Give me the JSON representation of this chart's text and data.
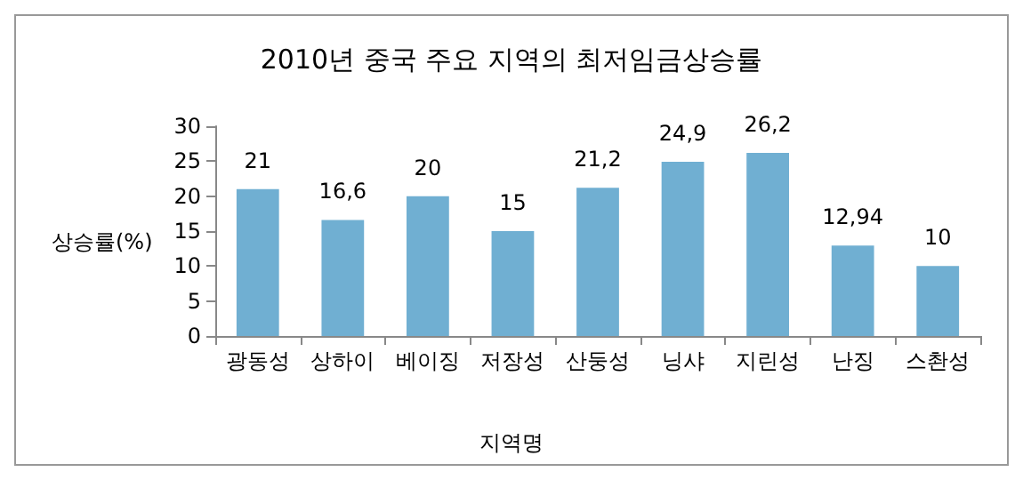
{
  "chart_data": {
    "type": "bar",
    "title": "2010년 중국 주요 지역의 최저임금상승률",
    "xlabel": "지역명",
    "ylabel": "상승률(%)",
    "categories": [
      "광동성",
      "상하이",
      "베이징",
      "저장성",
      "산둥성",
      "닝샤",
      "지린성",
      "난징",
      "스촨성"
    ],
    "values": [
      21,
      16.6,
      20,
      15,
      21.2,
      24.9,
      26.2,
      12.94,
      10
    ],
    "value_labels": [
      "21",
      "16,6",
      "20",
      "15",
      "21,2",
      "24,9",
      "26,2",
      "12,94",
      "10"
    ],
    "color": "#70afd2",
    "ylim": [
      0,
      30
    ],
    "yticks": [
      0,
      5,
      10,
      15,
      20,
      25,
      30
    ],
    "grid": false
  }
}
